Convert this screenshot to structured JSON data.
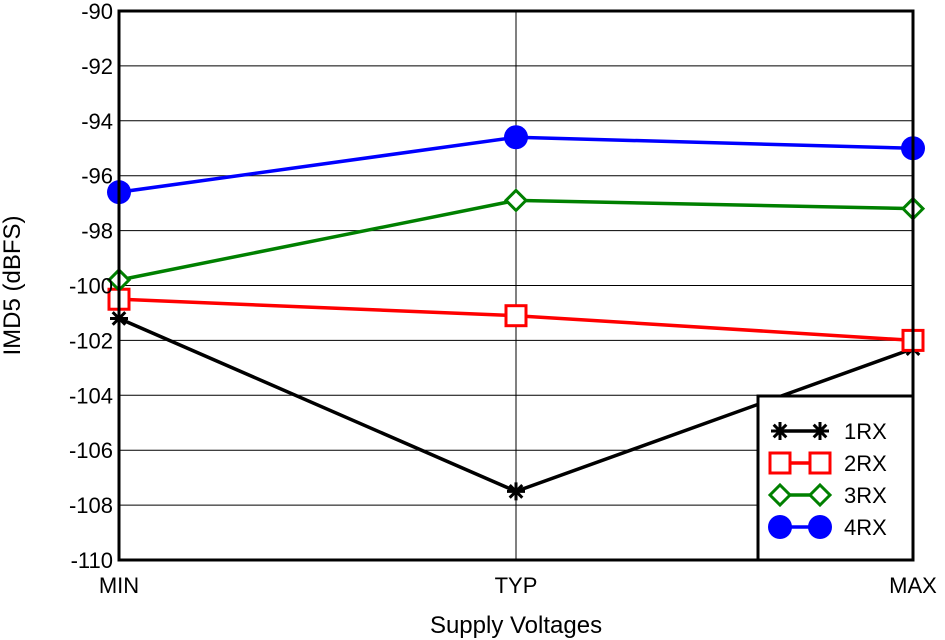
{
  "chart_data": {
    "type": "line",
    "categories": [
      "MIN",
      "TYP",
      "MAX"
    ],
    "xlabel": "Supply Voltages",
    "ylabel": "IMD5 (dBFS)",
    "ylim": [
      -110,
      -90
    ],
    "yticks": [
      -90,
      -92,
      -94,
      -96,
      -98,
      -100,
      -102,
      -104,
      -106,
      -108,
      -110
    ],
    "grid": true,
    "legend_position": "bottom-right",
    "series": [
      {
        "name": "1RX",
        "values": [
          -101.2,
          -107.5,
          -102.3
        ],
        "color": "#000000",
        "marker": "asterisk"
      },
      {
        "name": "2RX",
        "values": [
          -100.5,
          -101.1,
          -102.0
        ],
        "color": "#ff0000",
        "marker": "square"
      },
      {
        "name": "3RX",
        "values": [
          -99.8,
          -96.9,
          -97.2
        ],
        "color": "#008000",
        "marker": "diamond"
      },
      {
        "name": "4RX",
        "values": [
          -96.6,
          -94.6,
          -95.0
        ],
        "color": "#0000ff",
        "marker": "circle"
      }
    ]
  }
}
